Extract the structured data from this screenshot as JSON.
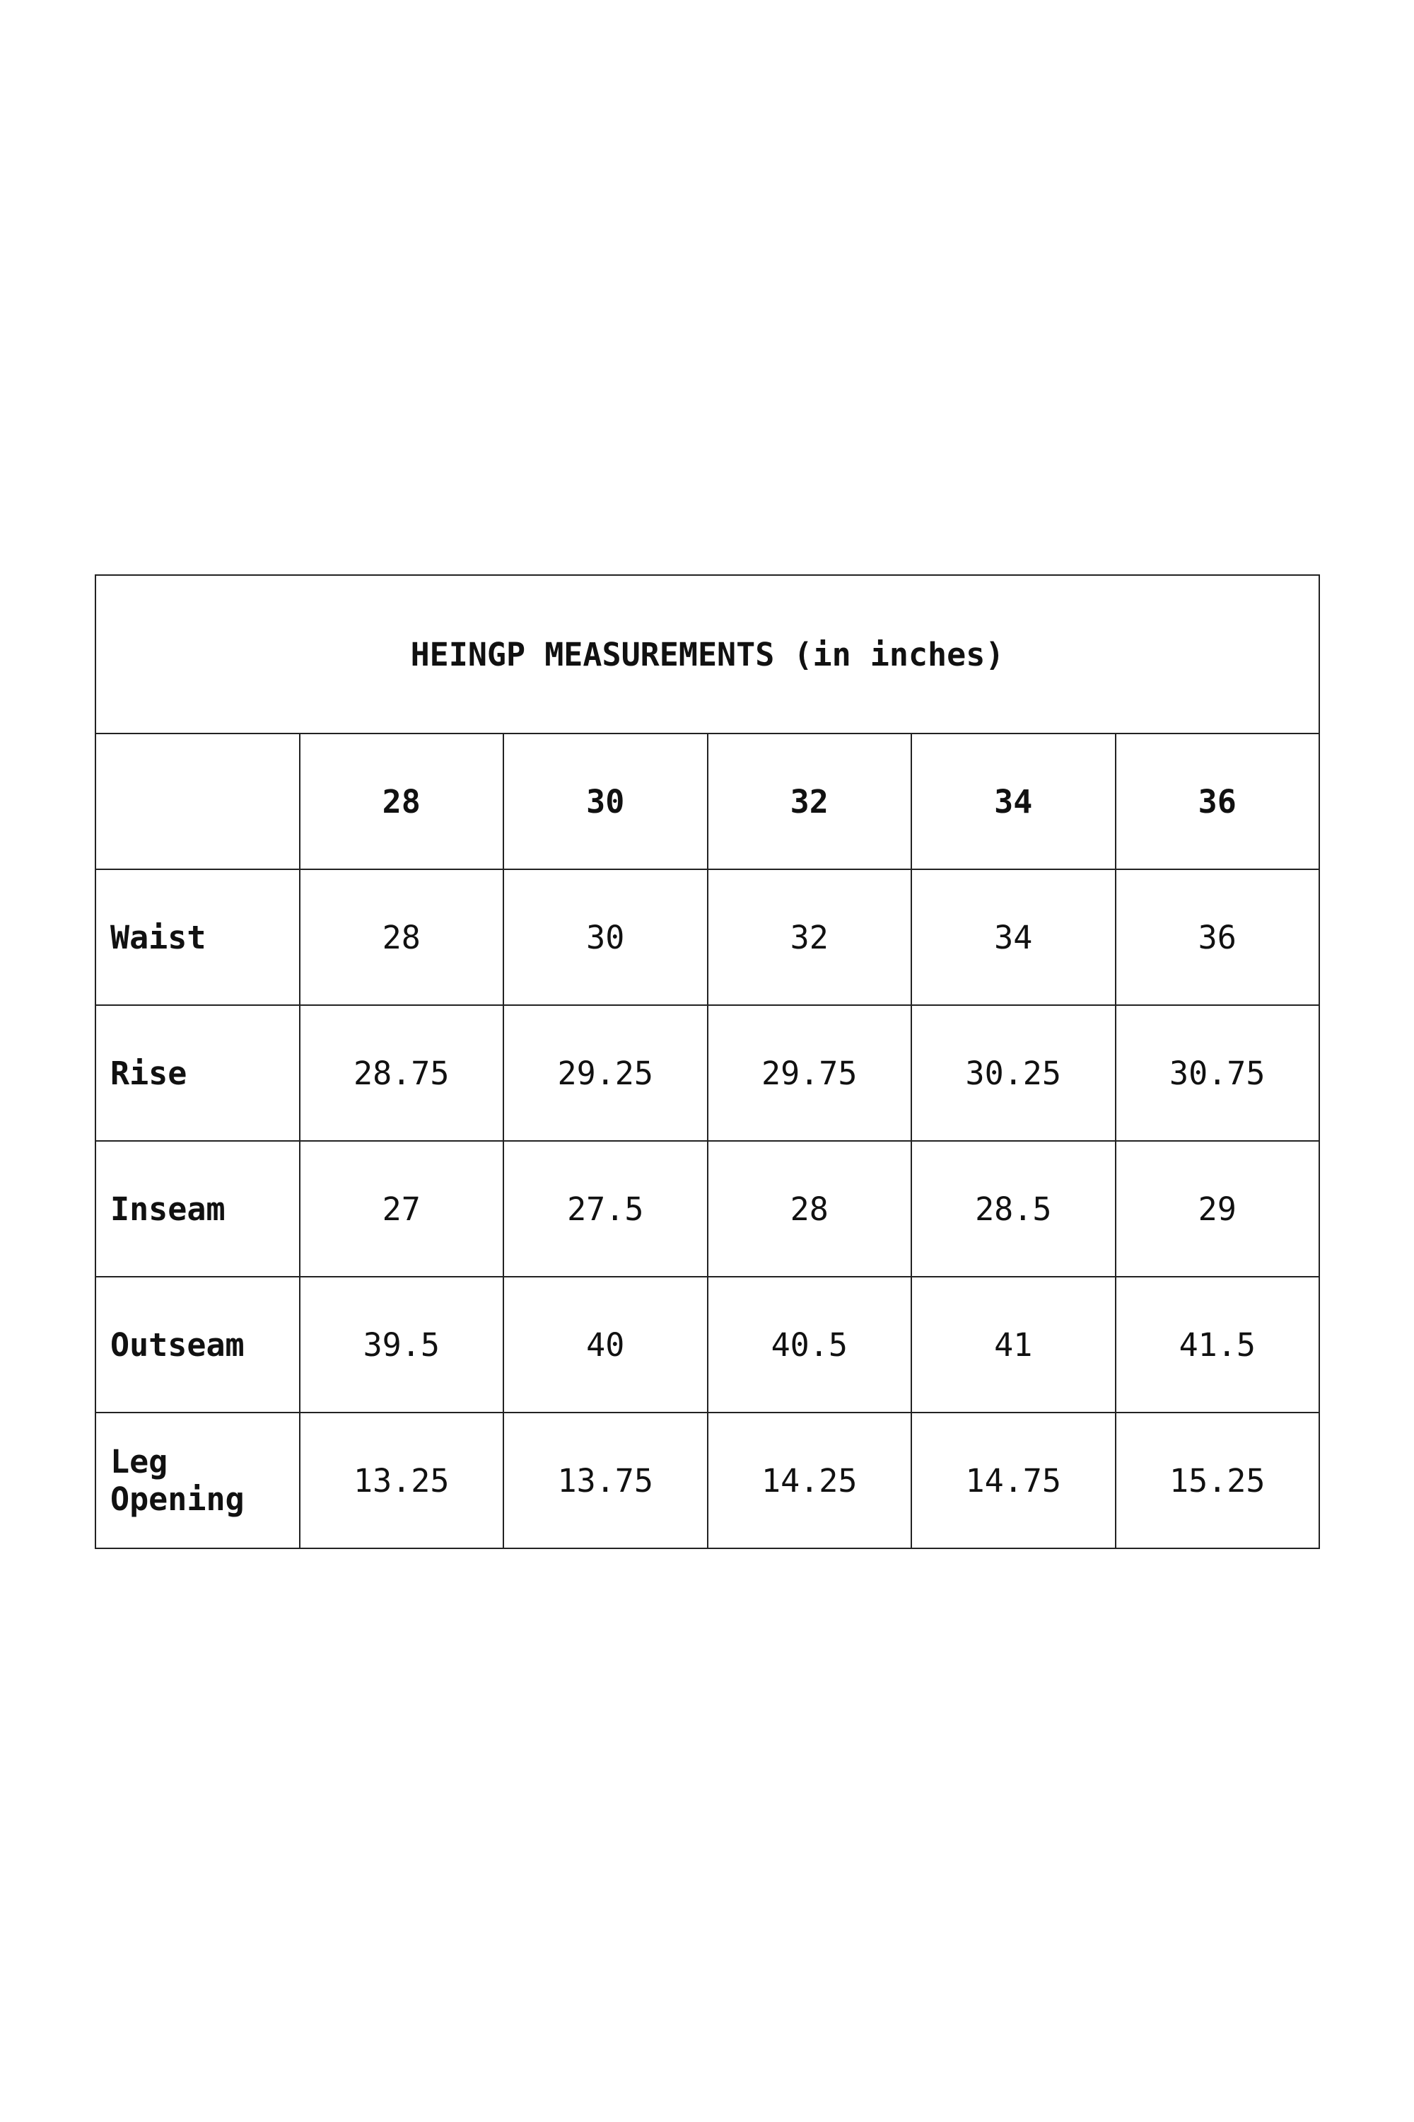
{
  "title": "HEINGP MEASUREMENTS (in inches)",
  "columns": [
    "28",
    "30",
    "32",
    "34",
    "36"
  ],
  "rows": [
    {
      "label": "Waist",
      "values": [
        "28",
        "30",
        "32",
        "34",
        "36"
      ]
    },
    {
      "label": "Rise",
      "values": [
        "28.75",
        "29.25",
        "29.75",
        "30.25",
        "30.75"
      ]
    },
    {
      "label": "Inseam",
      "values": [
        "27",
        "27.5",
        "28",
        "28.5",
        "29"
      ]
    },
    {
      "label": "Outseam",
      "values": [
        "39.5",
        "40",
        "40.5",
        "41",
        "41.5"
      ]
    },
    {
      "label": "Leg Opening",
      "values": [
        "13.25",
        "13.75",
        "14.25",
        "14.75",
        "15.25"
      ]
    }
  ]
}
